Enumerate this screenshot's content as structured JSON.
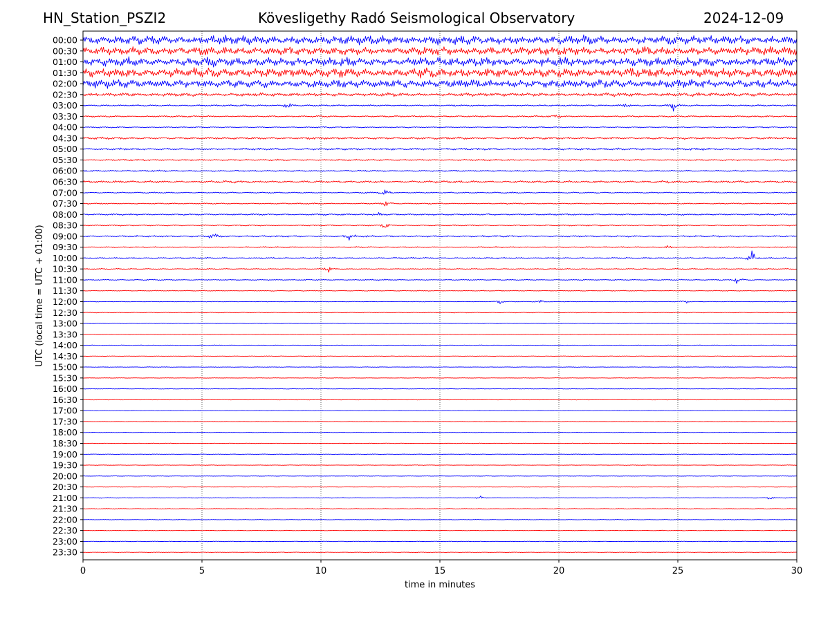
{
  "chart_data": {
    "type": "line",
    "header_left": "HN_Station_PSZI2",
    "title": "Kövesligethy Radó Seismological Observatory",
    "header_right": "2024-12-09",
    "xlabel": "time in minutes",
    "ylabel": "UTC (local time = UTC + 01:00)",
    "xlim": [
      0,
      30
    ],
    "x_ticks": [
      0,
      5,
      10,
      15,
      20,
      25,
      30
    ],
    "grid": "vertical dotted lines at 5-minute ticks",
    "row_labels": [
      "00:00",
      "00:30",
      "01:00",
      "01:30",
      "02:00",
      "02:30",
      "03:00",
      "03:30",
      "04:00",
      "04:30",
      "05:00",
      "05:30",
      "06:00",
      "06:30",
      "07:00",
      "07:30",
      "08:00",
      "08:30",
      "09:00",
      "09:30",
      "10:00",
      "10:30",
      "11:00",
      "11:30",
      "12:00",
      "12:30",
      "13:00",
      "13:30",
      "14:00",
      "14:30",
      "15:00",
      "15:30",
      "16:00",
      "16:30",
      "17:00",
      "17:30",
      "18:00",
      "18:30",
      "19:00",
      "19:30",
      "20:00",
      "20:30",
      "21:00",
      "21:30",
      "22:00",
      "22:30",
      "23:00",
      "23:30"
    ],
    "row_colors": [
      "#0000ff",
      "#ff0000"
    ],
    "row_activity": [
      0.85,
      0.8,
      0.85,
      0.9,
      0.8,
      0.35,
      0.15,
      0.15,
      0.12,
      0.22,
      0.2,
      0.15,
      0.14,
      0.22,
      0.12,
      0.12,
      0.16,
      0.12,
      0.16,
      0.12,
      0.14,
      0.1,
      0.1,
      0.08,
      0.06,
      0.08,
      0.06,
      0.06,
      0.06,
      0.05,
      0.05,
      0.05,
      0.05,
      0.05,
      0.05,
      0.05,
      0.05,
      0.05,
      0.05,
      0.05,
      0.05,
      0.05,
      0.07,
      0.07,
      0.06,
      0.06,
      0.06,
      0.06
    ],
    "events": [
      {
        "row": 6,
        "minute": 8.6,
        "amp": 1.2
      },
      {
        "row": 6,
        "minute": 22.8,
        "amp": 0.6
      },
      {
        "row": 6,
        "minute": 24.8,
        "amp": 0.9
      },
      {
        "row": 7,
        "minute": 19.9,
        "amp": 0.5
      },
      {
        "row": 14,
        "minute": 12.7,
        "amp": 1.0
      },
      {
        "row": 15,
        "minute": 12.7,
        "amp": 1.0
      },
      {
        "row": 16,
        "minute": 12.5,
        "amp": 0.6
      },
      {
        "row": 17,
        "minute": 12.7,
        "amp": 0.7
      },
      {
        "row": 18,
        "minute": 5.5,
        "amp": 1.0
      },
      {
        "row": 18,
        "minute": 11.2,
        "amp": 0.6
      },
      {
        "row": 19,
        "minute": 24.6,
        "amp": 0.5
      },
      {
        "row": 20,
        "minute": 28.1,
        "amp": 1.5
      },
      {
        "row": 21,
        "minute": 10.3,
        "amp": 0.7
      },
      {
        "row": 22,
        "minute": 27.5,
        "amp": 0.9
      },
      {
        "row": 24,
        "minute": 17.5,
        "amp": 0.8
      },
      {
        "row": 24,
        "minute": 19.2,
        "amp": 0.6
      },
      {
        "row": 24,
        "minute": 25.3,
        "amp": 0.6
      },
      {
        "row": 42,
        "minute": 16.7,
        "amp": 0.4
      },
      {
        "row": 42,
        "minute": 28.9,
        "amp": 0.3
      }
    ]
  }
}
